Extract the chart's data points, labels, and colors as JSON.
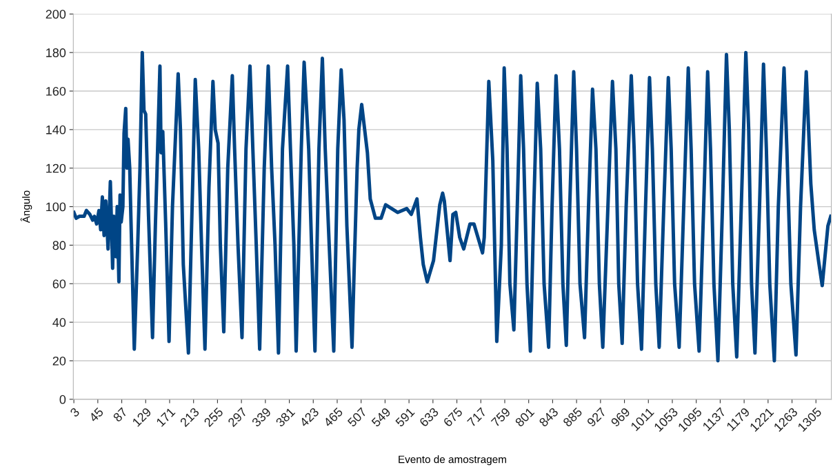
{
  "chart_data": {
    "type": "line",
    "xlabel": "Evento de amostragem",
    "ylabel": "Ângulo",
    "xlim": [
      2,
      1332
    ],
    "xticks": [
      3,
      45,
      87,
      129,
      171,
      213,
      255,
      297,
      339,
      381,
      423,
      465,
      507,
      549,
      591,
      633,
      675,
      717,
      759,
      801,
      843,
      885,
      927,
      969,
      1011,
      1053,
      1095,
      1137,
      1179,
      1221,
      1263,
      1305
    ],
    "ylim": [
      0,
      200
    ],
    "yticks": [
      0,
      20,
      40,
      60,
      80,
      100,
      120,
      140,
      160,
      180,
      200
    ],
    "grid": "y",
    "marker": "none",
    "line_style": "solid",
    "series": [
      {
        "color": "#004586",
        "x": [
          3,
          7,
          13,
          21,
          25,
          31,
          36,
          39,
          43,
          47,
          50,
          53,
          56,
          59,
          63,
          67,
          71,
          73,
          77,
          79,
          82,
          84,
          86,
          89,
          91,
          94,
          96,
          98,
          101,
          103,
          109,
          115,
          119,
          123,
          126,
          129,
          134,
          141,
          146,
          149,
          154,
          156,
          159,
          164,
          170,
          176,
          186,
          190,
          195,
          204,
          216,
          222,
          227,
          233,
          240,
          247,
          251,
          256,
          260,
          266,
          273,
          281,
          285,
          291,
          298,
          305,
          312,
          317,
          323,
          329,
          337,
          344,
          350,
          356,
          362,
          369,
          378,
          383,
          389,
          393,
          402,
          407,
          415,
          420,
          426,
          433,
          439,
          444,
          451,
          459,
          466,
          472,
          477,
          482,
          491,
          495,
          500,
          503,
          508,
          512,
          518,
          523,
          532,
          542,
          550,
          571,
          587,
          595,
          605,
          611,
          616,
          623,
          634,
          645,
          650,
          653,
          663,
          668,
          673,
          680,
          687,
          698,
          705,
          720,
          723,
          731,
          738,
          745,
          753,
          758,
          763,
          768,
          775,
          781,
          787,
          792,
          798,
          804,
          810,
          816,
          822,
          828,
          836,
          842,
          849,
          855,
          861,
          867,
          873,
          880,
          885,
          891,
          899,
          906,
          913,
          919,
          925,
          931,
          940,
          948,
          954,
          959,
          965,
          972,
          981,
          986,
          992,
          999,
          1006,
          1013,
          1018,
          1024,
          1030,
          1038,
          1046,
          1051,
          1057,
          1065,
          1073,
          1081,
          1086,
          1092,
          1100,
          1108,
          1115,
          1120,
          1126,
          1133,
          1141,
          1148,
          1153,
          1159,
          1166,
          1174,
          1182,
          1187,
          1192,
          1198,
          1206,
          1213,
          1218,
          1224,
          1232,
          1239,
          1249,
          1254,
          1261,
          1270,
          1278,
          1288,
          1296,
          1302,
          1310,
          1316,
          1326,
          1331
        ],
        "values": [
          97,
          94,
          95,
          95,
          98,
          96,
          93,
          95,
          91,
          98,
          88,
          105,
          85,
          103,
          78,
          113,
          68,
          95,
          74,
          100,
          61,
          106,
          92,
          100,
          138,
          151,
          120,
          135,
          120,
          95,
          26,
          80,
          120,
          180,
          150,
          148,
          95,
          32,
          90,
          120,
          173,
          128,
          139,
          92,
          30,
          100,
          169,
          140,
          70,
          24,
          166,
          130,
          80,
          26,
          110,
          165,
          140,
          133,
          80,
          35,
          120,
          168,
          130,
          80,
          32,
          130,
          173,
          130,
          80,
          26,
          120,
          173,
          120,
          80,
          24,
          130,
          173,
          130,
          80,
          25,
          130,
          175,
          130,
          80,
          25,
          130,
          177,
          130,
          80,
          25,
          130,
          171,
          145,
          90,
          27,
          70,
          120,
          140,
          153,
          143,
          128,
          104,
          94,
          94,
          101,
          97,
          99,
          96,
          104,
          84,
          70,
          61,
          72,
          101,
          107,
          103,
          72,
          96,
          97,
          84,
          78,
          91,
          91,
          76,
          84,
          165,
          124,
          30,
          80,
          172,
          130,
          60,
          36,
          100,
          168,
          130,
          60,
          25,
          100,
          164,
          130,
          60,
          27,
          100,
          168,
          130,
          60,
          28,
          100,
          170,
          130,
          60,
          32,
          100,
          161,
          130,
          60,
          27,
          100,
          165,
          130,
          60,
          29,
          100,
          168,
          130,
          60,
          26,
          100,
          167,
          130,
          60,
          27,
          100,
          167,
          130,
          60,
          27,
          100,
          172,
          130,
          60,
          25,
          100,
          170,
          130,
          60,
          20,
          100,
          179,
          140,
          60,
          22,
          100,
          180,
          140,
          60,
          24,
          100,
          174,
          130,
          60,
          20,
          100,
          172,
          130,
          60,
          23,
          100,
          170,
          112,
          88,
          71,
          59,
          90,
          95
        ]
      }
    ]
  }
}
